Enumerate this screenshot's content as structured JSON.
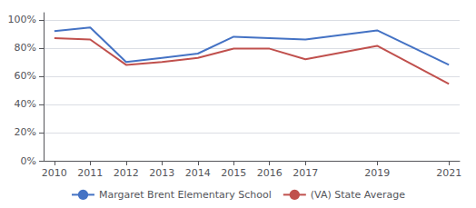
{
  "chart_data": {
    "type": "line",
    "x": [
      2010,
      2011,
      2012,
      2013,
      2014,
      2015,
      2016,
      2017,
      2019,
      2021
    ],
    "series": [
      {
        "name": "Margaret Brent Elementary School",
        "color": "#4472C4",
        "values": [
          0.92,
          0.945,
          0.7,
          0.73,
          0.76,
          0.88,
          0.87,
          0.86,
          0.925,
          0.68
        ]
      },
      {
        "name": "(VA) State Average",
        "color": "#C0504D",
        "values": [
          0.87,
          0.86,
          0.68,
          0.7,
          0.73,
          0.795,
          0.795,
          0.72,
          0.815,
          0.545
        ]
      }
    ],
    "xlim": [
      2009.7,
      2021.3
    ],
    "xticks": [
      2010,
      2011,
      2012,
      2013,
      2014,
      2015,
      2016,
      2017,
      2019,
      2021
    ],
    "ylim": [
      0,
      1.05
    ],
    "yticks": [
      {
        "value": 0,
        "label": "0%"
      },
      {
        "value": 0.2,
        "label": "20%"
      },
      {
        "value": 0.4,
        "label": "40%"
      },
      {
        "value": 0.6,
        "label": "60%"
      },
      {
        "value": 0.8,
        "label": "80%"
      },
      {
        "value": 1.0,
        "label": "100%"
      }
    ],
    "grid": true,
    "legend": "bottom"
  }
}
